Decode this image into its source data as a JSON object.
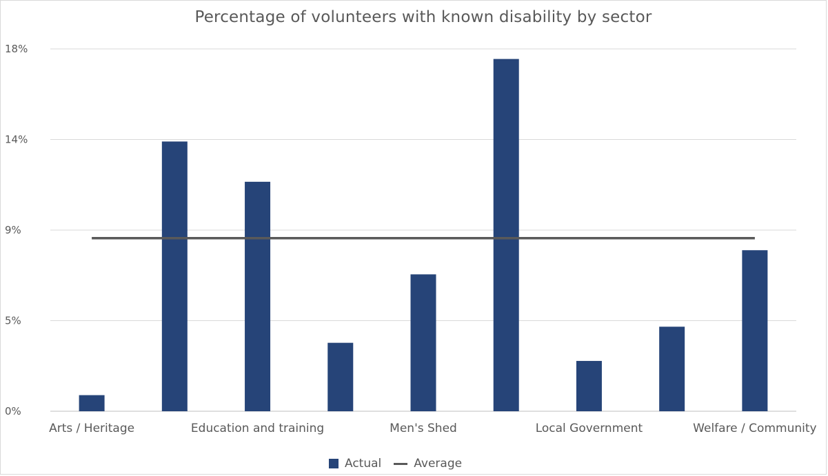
{
  "chart_data": {
    "type": "bar",
    "title": "Percentage of volunteers with known disability by sector",
    "categories": [
      "Arts / Heritage",
      "",
      "Education and training",
      "",
      "Men's Shed",
      "",
      "Local Government",
      "",
      "Welfare / Community"
    ],
    "series": [
      {
        "name": "Actual",
        "type": "bar",
        "color": "#264478",
        "values": [
          0.8,
          13.4,
          11.4,
          3.4,
          6.8,
          17.5,
          2.5,
          4.2,
          8.0
        ]
      },
      {
        "name": "Average",
        "type": "line",
        "color": "#595959",
        "values": [
          8.6,
          8.6,
          8.6,
          8.6,
          8.6,
          8.6,
          8.6,
          8.6,
          8.6
        ]
      }
    ],
    "yticks": [
      "0%",
      "5%",
      "9%",
      "14%",
      "18%"
    ],
    "ylim": [
      0,
      18
    ],
    "grid": true,
    "legend": "bottom",
    "xlabel": "",
    "ylabel": ""
  }
}
